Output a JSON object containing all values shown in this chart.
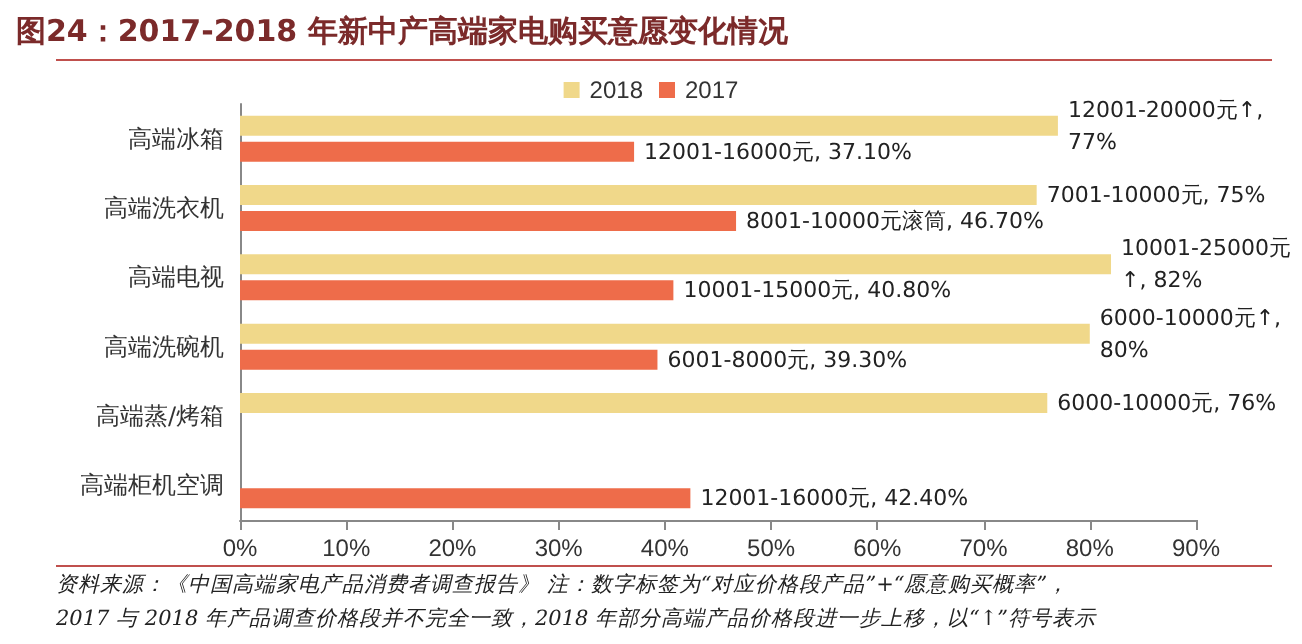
{
  "chart_data": {
    "type": "bar",
    "orientation": "horizontal",
    "title": "图24：2017-2018 年新中产高端家电购买意愿变化情况",
    "categories": [
      "高端冰箱",
      "高端洗衣机",
      "高端电视",
      "高端洗碗机",
      "高端蒸/烤箱",
      "高端柜机空调"
    ],
    "series": [
      {
        "name": "2018",
        "color": "#f0d88a",
        "values": [
          77,
          75,
          82,
          80,
          76,
          null
        ],
        "value_labels": [
          "12001-20000元↑, 77%",
          "7001-10000元, 75%",
          "10001-25000元↑, 82%",
          "6000-10000元↑, 80%",
          "6000-10000元, 76%",
          null
        ]
      },
      {
        "name": "2017",
        "color": "#ee6c4a",
        "values": [
          37.1,
          46.7,
          40.8,
          39.3,
          null,
          42.4
        ],
        "value_labels": [
          "12001-16000元, 37.10%",
          "8001-10000元滚筒, 46.70%",
          "10001-15000元, 40.80%",
          "6001-8000元, 39.30%",
          null,
          "12001-16000元, 42.40%"
        ]
      }
    ],
    "xlim": [
      0,
      90
    ],
    "xticks": [
      {
        "value": 0,
        "label": "0%"
      },
      {
        "value": 10,
        "label": "10%"
      },
      {
        "value": 20,
        "label": "20%"
      },
      {
        "value": 30,
        "label": "30%"
      },
      {
        "value": 40,
        "label": "40%"
      },
      {
        "value": 50,
        "label": "50%"
      },
      {
        "value": 60,
        "label": "60%"
      },
      {
        "value": 70,
        "label": "70%"
      },
      {
        "value": 80,
        "label": "80%"
      },
      {
        "value": 90,
        "label": "90%"
      }
    ],
    "grid": false,
    "legend": "top",
    "annotations": [
      "资料来源：《中国高端家电产品消费者调查报告》 注：数字标签为“对应价格段产品”+“愿意购买概率”，",
      "2017 与 2018 年产品调查价格段并不完全一致，2018 年部分高端产品价格段进一步上移，以“↑”符号表示"
    ]
  }
}
